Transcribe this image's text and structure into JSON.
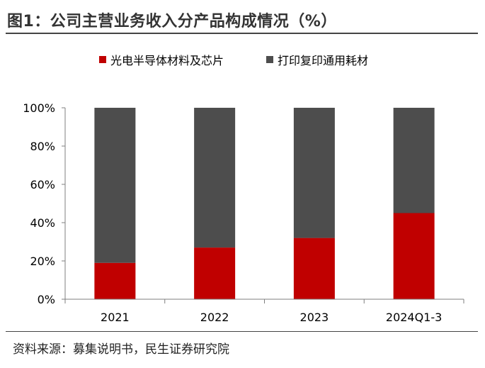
{
  "title": "图1：公司主营业务收入分产品构成情况（%）",
  "source": "资料来源：募集说明书，民生证券研究院",
  "colors": {
    "series1": "#C00000",
    "series2": "#4D4D4D",
    "axis": "#7F7F7F"
  },
  "chart_data": {
    "type": "bar",
    "stacked": true,
    "categories": [
      "2021",
      "2022",
      "2023",
      "2024Q1-3"
    ],
    "series": [
      {
        "name": "光电半导体材料及芯片",
        "values": [
          19,
          27,
          32,
          45
        ]
      },
      {
        "name": "打印复印通用耗材",
        "values": [
          81,
          73,
          68,
          55
        ]
      }
    ],
    "yticks": [
      "0%",
      "20%",
      "40%",
      "60%",
      "80%",
      "100%"
    ],
    "ylim": [
      0,
      100
    ],
    "legend_position": "top",
    "grid": false
  }
}
